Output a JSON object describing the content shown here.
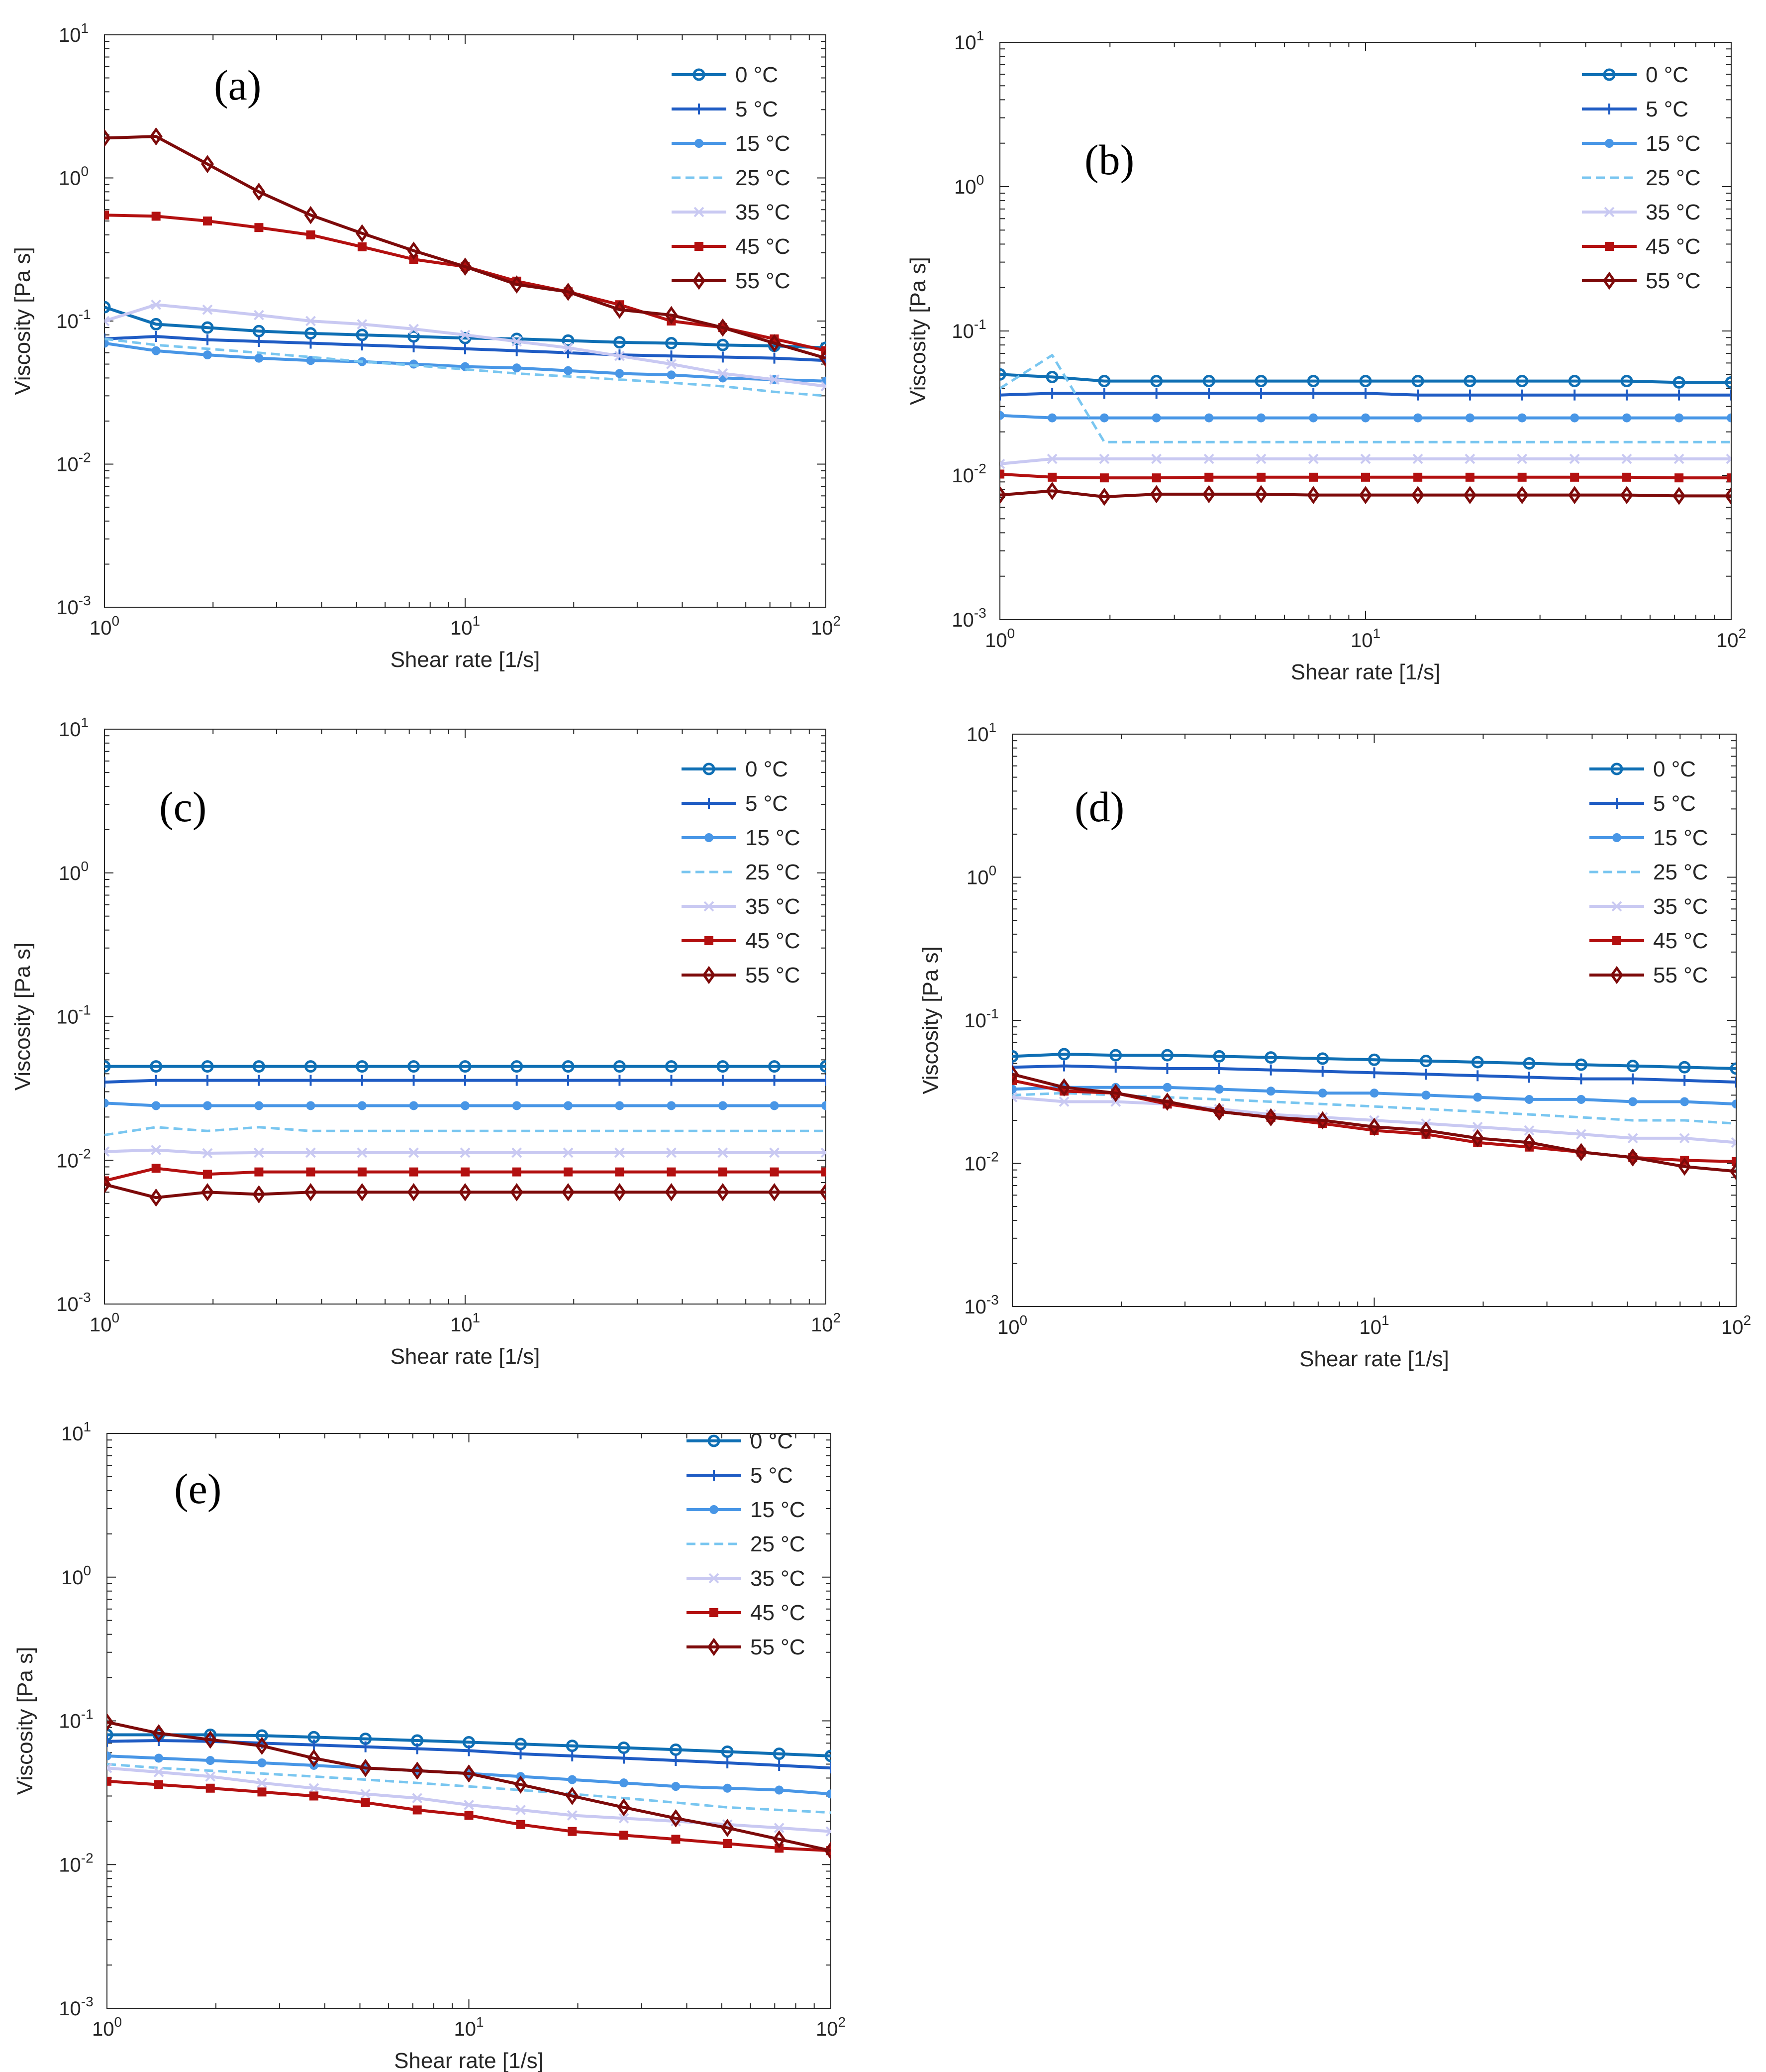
{
  "figure": {
    "legend_title": "",
    "legend_labels": [
      "0 °C",
      "5 °C",
      "15 °C",
      "25 °C",
      "35 °C",
      "45 °C",
      "55 °C"
    ]
  },
  "series_styles": [
    {
      "name": "0 °C",
      "color": "#0f6fb4",
      "marker": "circle",
      "dash": "solid"
    },
    {
      "name": "5 °C",
      "color": "#1f5cc4",
      "marker": "plus",
      "dash": "solid"
    },
    {
      "name": "15 °C",
      "color": "#4896e6",
      "marker": "dot",
      "dash": "solid"
    },
    {
      "name": "25 °C",
      "color": "#79c6f0",
      "marker": "none",
      "dash": "dashed"
    },
    {
      "name": "35 °C",
      "color": "#c9c9f2",
      "marker": "star",
      "dash": "solid"
    },
    {
      "name": "45 °C",
      "color": "#b31010",
      "marker": "square",
      "dash": "solid"
    },
    {
      "name": "55 °C",
      "color": "#7d0a0a",
      "marker": "diamond",
      "dash": "solid"
    }
  ],
  "chart_data": [
    {
      "type": "line",
      "panel": "(a)",
      "xlabel": "Shear rate [1/s]",
      "ylabel": "Viscosity [Pa s]",
      "xscale": "log",
      "yscale": "log",
      "xlim": [
        1,
        100
      ],
      "ylim": [
        0.001,
        10
      ],
      "x_ticks": [
        "10^0",
        "10^1",
        "10^2"
      ],
      "y_ticks": [
        "10^-3",
        "10^-2",
        "10^-1",
        "10^0",
        "10^1"
      ],
      "legend_position": "top-right",
      "x": [
        1,
        1.39,
        1.93,
        2.68,
        3.73,
        5.18,
        7.2,
        10,
        13.9,
        19.3,
        26.8,
        37.3,
        51.8,
        72,
        100
      ],
      "series": [
        {
          "name": "0 °C",
          "values": [
            0.125,
            0.095,
            0.09,
            0.085,
            0.082,
            0.08,
            0.078,
            0.076,
            0.075,
            0.073,
            0.071,
            0.07,
            0.068,
            0.067,
            0.065
          ]
        },
        {
          "name": "5 °C",
          "values": [
            0.075,
            0.078,
            0.074,
            0.072,
            0.07,
            0.068,
            0.066,
            0.064,
            0.062,
            0.06,
            0.058,
            0.057,
            0.056,
            0.055,
            0.053
          ]
        },
        {
          "name": "15 °C",
          "values": [
            0.07,
            0.062,
            0.058,
            0.055,
            0.053,
            0.052,
            0.05,
            0.048,
            0.047,
            0.045,
            0.043,
            0.042,
            0.04,
            0.039,
            0.038
          ]
        },
        {
          "name": "25 °C",
          "values": [
            0.075,
            0.068,
            0.064,
            0.06,
            0.056,
            0.052,
            0.049,
            0.046,
            0.043,
            0.041,
            0.039,
            0.037,
            0.035,
            0.032,
            0.03
          ]
        },
        {
          "name": "35 °C",
          "values": [
            0.1,
            0.13,
            0.12,
            0.11,
            0.1,
            0.095,
            0.088,
            0.08,
            0.072,
            0.065,
            0.057,
            0.05,
            0.043,
            0.039,
            0.035
          ]
        },
        {
          "name": "45 °C",
          "values": [
            0.55,
            0.54,
            0.5,
            0.45,
            0.4,
            0.33,
            0.27,
            0.24,
            0.19,
            0.16,
            0.13,
            0.1,
            0.09,
            0.075,
            0.062
          ]
        },
        {
          "name": "55 °C",
          "values": [
            1.9,
            1.95,
            1.25,
            0.8,
            0.55,
            0.41,
            0.31,
            0.24,
            0.18,
            0.16,
            0.12,
            0.11,
            0.09,
            0.07,
            0.055
          ]
        }
      ]
    },
    {
      "type": "line",
      "panel": "(b)",
      "xlabel": "Shear rate [1/s]",
      "ylabel": "Viscosity [Pa s]",
      "xscale": "log",
      "yscale": "log",
      "xlim": [
        1,
        100
      ],
      "ylim": [
        0.001,
        10
      ],
      "x_ticks": [
        "10^0",
        "10^1",
        "10^2"
      ],
      "y_ticks": [
        "10^-3",
        "10^-2",
        "10^-1",
        "10^0",
        "10^1"
      ],
      "legend_position": "top-right",
      "x": [
        1,
        1.39,
        1.93,
        2.68,
        3.73,
        5.18,
        7.2,
        10,
        13.9,
        19.3,
        26.8,
        37.3,
        51.8,
        72,
        100
      ],
      "series": [
        {
          "name": "0 °C",
          "values": [
            0.05,
            0.048,
            0.045,
            0.045,
            0.045,
            0.045,
            0.045,
            0.045,
            0.045,
            0.045,
            0.045,
            0.045,
            0.045,
            0.044,
            0.044
          ]
        },
        {
          "name": "5 °C",
          "values": [
            0.036,
            0.037,
            0.037,
            0.037,
            0.037,
            0.037,
            0.037,
            0.037,
            0.036,
            0.036,
            0.036,
            0.036,
            0.036,
            0.036,
            0.036
          ]
        },
        {
          "name": "15 °C",
          "values": [
            0.026,
            0.025,
            0.025,
            0.025,
            0.025,
            0.025,
            0.025,
            0.025,
            0.025,
            0.025,
            0.025,
            0.025,
            0.025,
            0.025,
            0.025
          ]
        },
        {
          "name": "25 °C",
          "values": [
            0.04,
            0.068,
            0.017,
            0.017,
            0.017,
            0.017,
            0.017,
            0.017,
            0.017,
            0.017,
            0.017,
            0.017,
            0.017,
            0.017,
            0.017
          ]
        },
        {
          "name": "35 °C",
          "values": [
            0.012,
            0.013,
            0.013,
            0.013,
            0.013,
            0.013,
            0.013,
            0.013,
            0.013,
            0.013,
            0.013,
            0.013,
            0.013,
            0.013,
            0.013
          ]
        },
        {
          "name": "45 °C",
          "values": [
            0.0102,
            0.0097,
            0.0096,
            0.0096,
            0.0097,
            0.0097,
            0.0097,
            0.0097,
            0.0097,
            0.0097,
            0.0097,
            0.0097,
            0.0097,
            0.0096,
            0.0096
          ]
        },
        {
          "name": "55 °C",
          "values": [
            0.0073,
            0.0078,
            0.0071,
            0.0074,
            0.0074,
            0.0074,
            0.0073,
            0.0073,
            0.0073,
            0.0073,
            0.0073,
            0.0073,
            0.0073,
            0.0072,
            0.0072
          ]
        }
      ]
    },
    {
      "type": "line",
      "panel": "(c)",
      "xlabel": "Shear rate [1/s]",
      "ylabel": "Viscosity [Pa s]",
      "xscale": "log",
      "yscale": "log",
      "xlim": [
        1,
        100
      ],
      "ylim": [
        0.001,
        10
      ],
      "x_ticks": [
        "10^0",
        "10^1",
        "10^2"
      ],
      "y_ticks": [
        "10^-3",
        "10^-2",
        "10^-1",
        "10^0",
        "10^1"
      ],
      "legend_position": "top-right",
      "x": [
        1,
        1.39,
        1.93,
        2.68,
        3.73,
        5.18,
        7.2,
        10,
        13.9,
        19.3,
        26.8,
        37.3,
        51.8,
        72,
        100
      ],
      "series": [
        {
          "name": "0 °C",
          "values": [
            0.045,
            0.045,
            0.045,
            0.045,
            0.045,
            0.045,
            0.045,
            0.045,
            0.045,
            0.045,
            0.045,
            0.045,
            0.045,
            0.045,
            0.045
          ]
        },
        {
          "name": "5 °C",
          "values": [
            0.035,
            0.036,
            0.036,
            0.036,
            0.036,
            0.036,
            0.036,
            0.036,
            0.036,
            0.036,
            0.036,
            0.036,
            0.036,
            0.036,
            0.036
          ]
        },
        {
          "name": "15 °C",
          "values": [
            0.025,
            0.024,
            0.024,
            0.024,
            0.024,
            0.024,
            0.024,
            0.024,
            0.024,
            0.024,
            0.024,
            0.024,
            0.024,
            0.024,
            0.024
          ]
        },
        {
          "name": "25 °C",
          "values": [
            0.015,
            0.017,
            0.016,
            0.017,
            0.016,
            0.016,
            0.016,
            0.016,
            0.016,
            0.016,
            0.016,
            0.016,
            0.016,
            0.016,
            0.016
          ]
        },
        {
          "name": "35 °C",
          "values": [
            0.0115,
            0.0118,
            0.0112,
            0.0113,
            0.0113,
            0.0113,
            0.0113,
            0.0113,
            0.0113,
            0.0113,
            0.0113,
            0.0113,
            0.0113,
            0.0113,
            0.0113
          ]
        },
        {
          "name": "45 °C",
          "values": [
            0.0072,
            0.0088,
            0.008,
            0.0083,
            0.0083,
            0.0083,
            0.0083,
            0.0083,
            0.0083,
            0.0083,
            0.0083,
            0.0083,
            0.0083,
            0.0083,
            0.0083
          ]
        },
        {
          "name": "55 °C",
          "values": [
            0.0068,
            0.0055,
            0.006,
            0.0058,
            0.006,
            0.006,
            0.006,
            0.006,
            0.006,
            0.006,
            0.006,
            0.006,
            0.006,
            0.006,
            0.006
          ]
        }
      ]
    },
    {
      "type": "line",
      "panel": "(d)",
      "xlabel": "Shear rate [1/s]",
      "ylabel": "Viscosity [Pa s]",
      "xscale": "log",
      "yscale": "log",
      "xlim": [
        1,
        100
      ],
      "ylim": [
        0.001,
        10
      ],
      "x_ticks": [
        "10^0",
        "10^1",
        "10^2"
      ],
      "y_ticks": [
        "10^-3",
        "10^-2",
        "10^-1",
        "10^0",
        "10^1"
      ],
      "legend_position": "top-right",
      "x": [
        1,
        1.39,
        1.93,
        2.68,
        3.73,
        5.18,
        7.2,
        10,
        13.9,
        19.3,
        26.8,
        37.3,
        51.8,
        72,
        100
      ],
      "series": [
        {
          "name": "0 °C",
          "values": [
            0.056,
            0.058,
            0.057,
            0.057,
            0.056,
            0.055,
            0.054,
            0.053,
            0.052,
            0.051,
            0.05,
            0.049,
            0.048,
            0.047,
            0.046
          ]
        },
        {
          "name": "5 °C",
          "values": [
            0.047,
            0.048,
            0.047,
            0.046,
            0.046,
            0.045,
            0.044,
            0.043,
            0.042,
            0.041,
            0.04,
            0.039,
            0.039,
            0.038,
            0.037
          ]
        },
        {
          "name": "15 °C",
          "values": [
            0.033,
            0.034,
            0.034,
            0.034,
            0.033,
            0.032,
            0.031,
            0.031,
            0.03,
            0.029,
            0.028,
            0.028,
            0.027,
            0.027,
            0.026
          ]
        },
        {
          "name": "25 °C",
          "values": [
            0.03,
            0.031,
            0.03,
            0.029,
            0.028,
            0.027,
            0.026,
            0.025,
            0.024,
            0.023,
            0.022,
            0.021,
            0.02,
            0.02,
            0.019
          ]
        },
        {
          "name": "35 °C",
          "values": [
            0.029,
            0.027,
            0.027,
            0.026,
            0.024,
            0.022,
            0.021,
            0.02,
            0.019,
            0.018,
            0.017,
            0.016,
            0.015,
            0.015,
            0.014
          ]
        },
        {
          "name": "45 °C",
          "values": [
            0.038,
            0.032,
            0.031,
            0.026,
            0.023,
            0.021,
            0.019,
            0.017,
            0.016,
            0.014,
            0.013,
            0.012,
            0.011,
            0.0105,
            0.0103
          ]
        },
        {
          "name": "55 °C",
          "values": [
            0.042,
            0.034,
            0.031,
            0.027,
            0.023,
            0.021,
            0.02,
            0.018,
            0.017,
            0.015,
            0.014,
            0.012,
            0.011,
            0.0095,
            0.0088
          ]
        }
      ]
    },
    {
      "type": "line",
      "panel": "(e)",
      "xlabel": "Shear rate [1/s]",
      "ylabel": "Viscosity [Pa s]",
      "xscale": "log",
      "yscale": "log",
      "xlim": [
        1,
        100
      ],
      "ylim": [
        0.001,
        10
      ],
      "x_ticks": [
        "10^0",
        "10^1",
        "10^2"
      ],
      "y_ticks": [
        "10^-3",
        "10^-2",
        "10^-1",
        "10^0",
        "10^1"
      ],
      "legend_position": "top-right",
      "x": [
        1,
        1.39,
        1.93,
        2.68,
        3.73,
        5.18,
        7.2,
        10,
        13.9,
        19.3,
        26.8,
        37.3,
        51.8,
        72,
        100
      ],
      "series": [
        {
          "name": "0 °C",
          "values": [
            0.08,
            0.08,
            0.08,
            0.079,
            0.077,
            0.075,
            0.073,
            0.071,
            0.069,
            0.067,
            0.065,
            0.063,
            0.061,
            0.059,
            0.057
          ]
        },
        {
          "name": "5 °C",
          "values": [
            0.072,
            0.073,
            0.072,
            0.07,
            0.068,
            0.066,
            0.064,
            0.062,
            0.059,
            0.057,
            0.055,
            0.053,
            0.051,
            0.049,
            0.047
          ]
        },
        {
          "name": "15 °C",
          "values": [
            0.057,
            0.055,
            0.053,
            0.051,
            0.049,
            0.047,
            0.045,
            0.043,
            0.041,
            0.039,
            0.037,
            0.035,
            0.034,
            0.033,
            0.031
          ]
        },
        {
          "name": "25 °C",
          "values": [
            0.05,
            0.047,
            0.045,
            0.043,
            0.041,
            0.039,
            0.037,
            0.035,
            0.033,
            0.031,
            0.029,
            0.027,
            0.025,
            0.024,
            0.023
          ]
        },
        {
          "name": "35 °C",
          "values": [
            0.047,
            0.044,
            0.041,
            0.037,
            0.034,
            0.031,
            0.029,
            0.026,
            0.024,
            0.022,
            0.021,
            0.02,
            0.019,
            0.018,
            0.017
          ]
        },
        {
          "name": "45 °C",
          "values": [
            0.038,
            0.036,
            0.034,
            0.032,
            0.03,
            0.027,
            0.024,
            0.022,
            0.019,
            0.017,
            0.016,
            0.015,
            0.014,
            0.013,
            0.0125
          ]
        },
        {
          "name": "55 °C",
          "values": [
            0.098,
            0.082,
            0.074,
            0.067,
            0.055,
            0.047,
            0.045,
            0.043,
            0.036,
            0.03,
            0.025,
            0.021,
            0.018,
            0.015,
            0.0125
          ]
        }
      ]
    }
  ]
}
